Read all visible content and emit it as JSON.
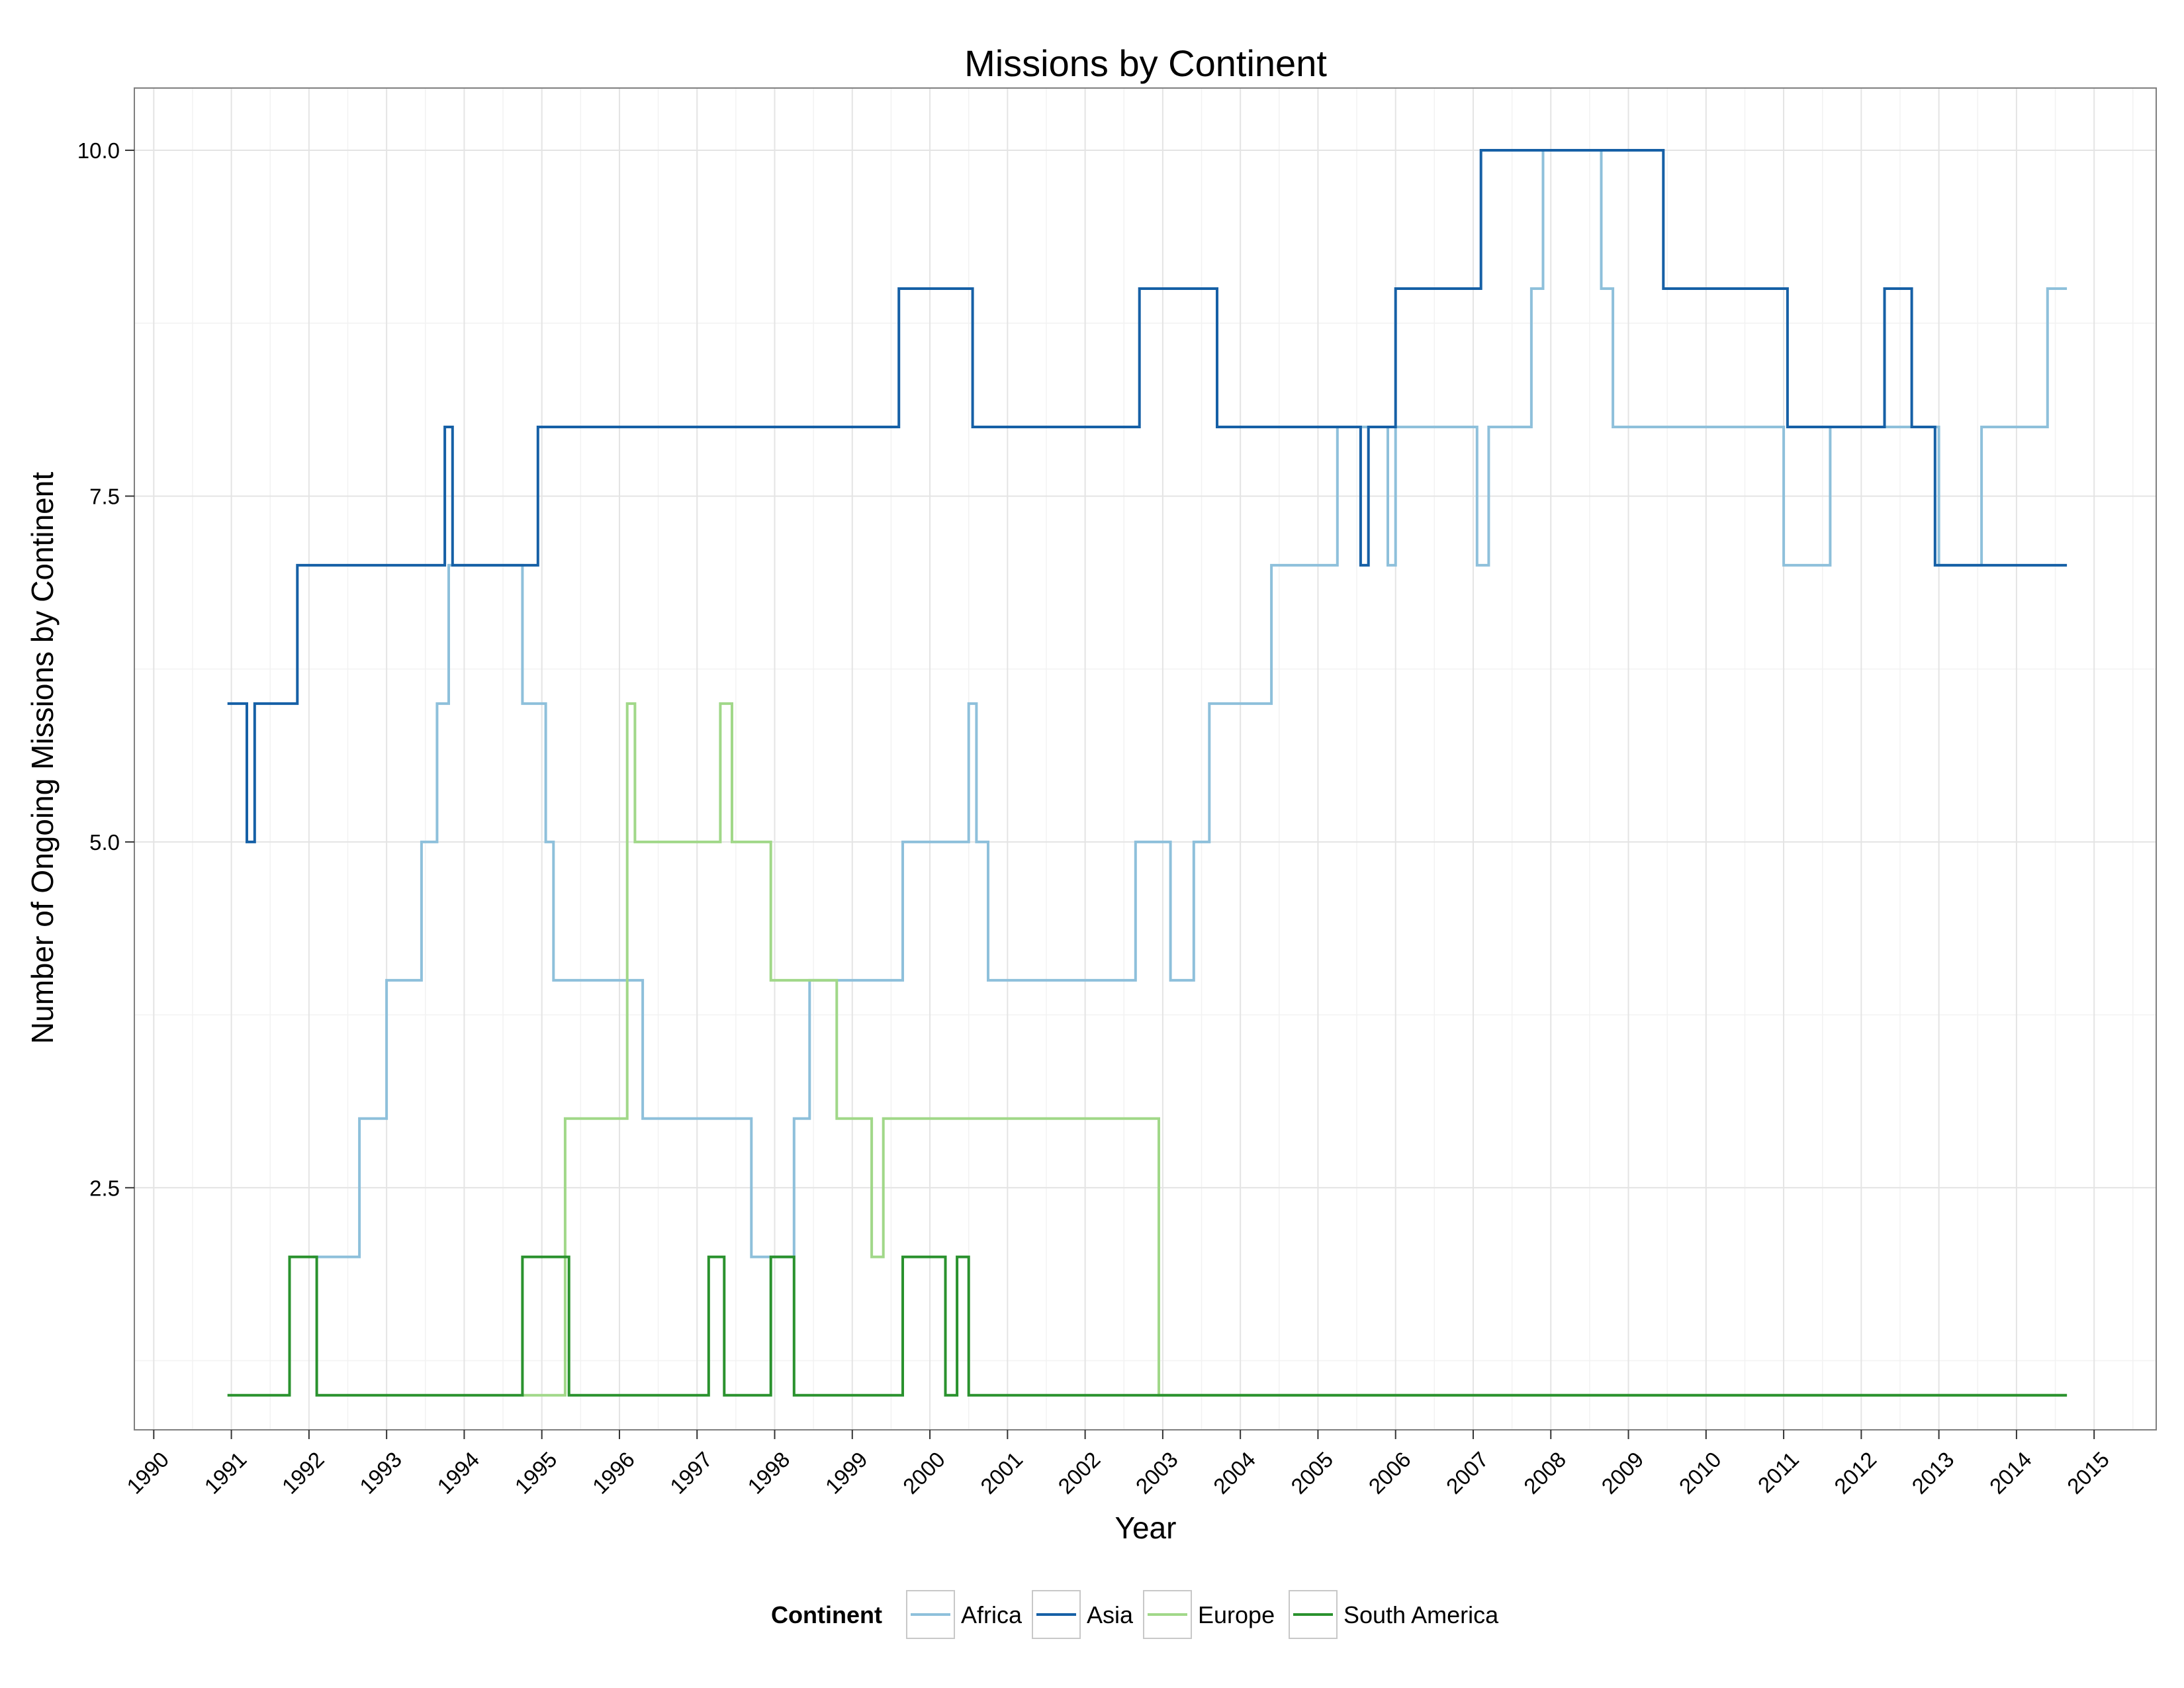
{
  "chart_data": {
    "type": "line",
    "title": "Missions by Continent",
    "xlabel": "Year",
    "ylabel": "Number of Ongoing Missions by Continent",
    "x_unit": "year",
    "xlim": [
      1989.75,
      2015.8
    ],
    "ylim": [
      0.75,
      10.45
    ],
    "x_ticks": [
      1990,
      1991,
      1992,
      1993,
      1994,
      1995,
      1996,
      1997,
      1998,
      1999,
      2000,
      2001,
      2002,
      2003,
      2004,
      2005,
      2006,
      2007,
      2008,
      2009,
      2010,
      2011,
      2012,
      2013,
      2014,
      2015
    ],
    "x_tick_labels": [
      "1990",
      "1991",
      "1992",
      "1993",
      "1994",
      "1995",
      "1996",
      "1997",
      "1998",
      "1999",
      "2000",
      "2001",
      "2002",
      "2003",
      "2004",
      "2005",
      "2006",
      "2007",
      "2008",
      "2009",
      "2010",
      "2011",
      "2012",
      "2013",
      "2014",
      "2015"
    ],
    "y_ticks": [
      2.5,
      5.0,
      7.5,
      10.0
    ],
    "y_tick_labels": [
      "2.5",
      "5.0",
      "7.5",
      "10.0"
    ],
    "grid": true,
    "legend": {
      "title": "Continent",
      "position": "bottom",
      "entries": [
        "Africa",
        "Asia",
        "Europe",
        "South America"
      ]
    },
    "series": [
      {
        "name": "Africa",
        "color": "#8EC0DB",
        "step": true,
        "points": [
          [
            1992.05,
            2
          ],
          [
            1992.65,
            3
          ],
          [
            1993.0,
            4
          ],
          [
            1993.45,
            5
          ],
          [
            1993.65,
            6
          ],
          [
            1993.8,
            7
          ],
          [
            1994.75,
            6
          ],
          [
            1995.05,
            5
          ],
          [
            1995.15,
            4
          ],
          [
            1996.3,
            3
          ],
          [
            1997.7,
            2
          ],
          [
            1998.05,
            2
          ],
          [
            1998.25,
            3
          ],
          [
            1998.45,
            4
          ],
          [
            1999.65,
            5
          ],
          [
            2000.5,
            6
          ],
          [
            2000.6,
            5
          ],
          [
            2000.75,
            4
          ],
          [
            2002.65,
            5
          ],
          [
            2003.1,
            4
          ],
          [
            2003.4,
            5
          ],
          [
            2003.6,
            6
          ],
          [
            2004.4,
            7
          ],
          [
            2005.25,
            8
          ],
          [
            2005.9,
            7
          ],
          [
            2006.0,
            8
          ],
          [
            2007.05,
            7
          ],
          [
            2007.2,
            8
          ],
          [
            2007.75,
            9
          ],
          [
            2007.9,
            10
          ],
          [
            2008.65,
            9
          ],
          [
            2008.8,
            8
          ],
          [
            2011.0,
            7
          ],
          [
            2011.6,
            8
          ],
          [
            2013.0,
            7
          ],
          [
            2013.55,
            8
          ],
          [
            2014.4,
            9
          ],
          [
            2014.65,
            9
          ]
        ]
      },
      {
        "name": "Asia",
        "color": "#1660A6",
        "step": true,
        "points": [
          [
            1990.95,
            6
          ],
          [
            1991.2,
            5
          ],
          [
            1991.3,
            6
          ],
          [
            1991.85,
            7
          ],
          [
            1993.75,
            8
          ],
          [
            1993.85,
            7
          ],
          [
            1994.95,
            8
          ],
          [
            1999.6,
            9
          ],
          [
            2000.55,
            8
          ],
          [
            2002.7,
            9
          ],
          [
            2003.7,
            8
          ],
          [
            2005.55,
            7
          ],
          [
            2005.65,
            8
          ],
          [
            2006.0,
            9
          ],
          [
            2007.1,
            10
          ],
          [
            2009.45,
            9
          ],
          [
            2011.05,
            8
          ],
          [
            2012.3,
            9
          ],
          [
            2012.65,
            8
          ],
          [
            2012.95,
            7
          ],
          [
            2014.65,
            7
          ]
        ]
      },
      {
        "name": "Europe",
        "color": "#A1D889",
        "step": true,
        "points": [
          [
            1994.75,
            1
          ],
          [
            1995.3,
            3
          ],
          [
            1996.1,
            6
          ],
          [
            1996.2,
            5
          ],
          [
            1997.3,
            6
          ],
          [
            1997.45,
            5
          ],
          [
            1997.95,
            4
          ],
          [
            1998.8,
            3
          ],
          [
            1999.25,
            2
          ],
          [
            1999.4,
            3
          ],
          [
            2002.95,
            1
          ],
          [
            2014.65,
            1
          ]
        ]
      },
      {
        "name": "South America",
        "color": "#2A922E",
        "step": true,
        "points": [
          [
            1990.95,
            1
          ],
          [
            1991.75,
            2
          ],
          [
            1992.1,
            1
          ],
          [
            1994.75,
            2
          ],
          [
            1995.35,
            1
          ],
          [
            1997.15,
            2
          ],
          [
            1997.35,
            1
          ],
          [
            1997.95,
            2
          ],
          [
            1998.25,
            1
          ],
          [
            1999.65,
            2
          ],
          [
            2000.2,
            1
          ],
          [
            2000.35,
            2
          ],
          [
            2000.5,
            1
          ],
          [
            2014.65,
            1
          ]
        ]
      }
    ]
  }
}
